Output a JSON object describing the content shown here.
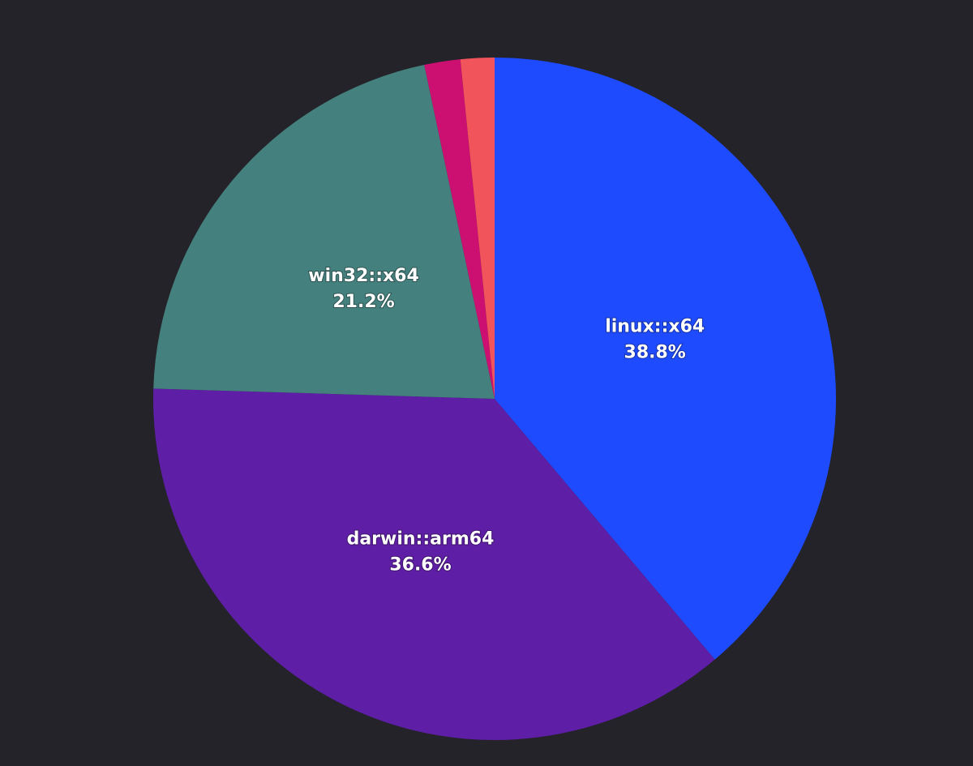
{
  "chart_data": {
    "type": "pie",
    "categories": [
      "linux::x64",
      "darwin::arm64",
      "win32::x64",
      null,
      null
    ],
    "values": [
      38.8,
      36.6,
      21.2,
      1.7,
      1.6
    ],
    "value_labels": [
      "38.8%",
      "36.6%",
      "21.2%",
      null,
      null
    ],
    "colors": [
      "#1f4bff",
      "#5e1ea5",
      "#44807d",
      "#cc1072",
      "#f2545b"
    ],
    "background": "#232329"
  }
}
